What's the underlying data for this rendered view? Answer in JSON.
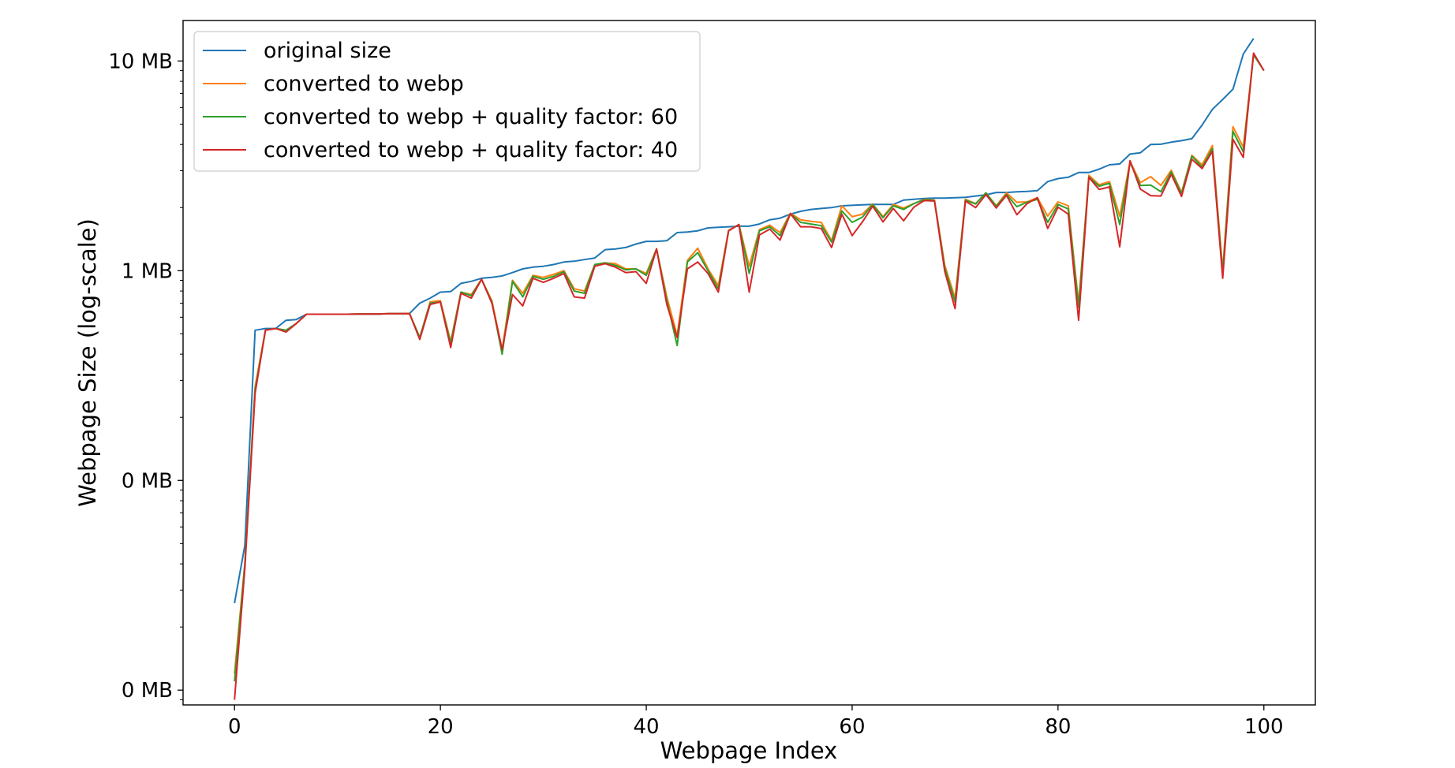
{
  "chart_data": {
    "type": "line",
    "xlabel": "Webpage Index",
    "ylabel": "Webpage Size (log-scale)",
    "yscale": "log",
    "xlim": [
      -5,
      105
    ],
    "ylim": [
      0.0085,
      15.6
    ],
    "x_ticks": [
      0,
      20,
      40,
      60,
      80,
      100
    ],
    "y_ticks": [
      {
        "value": 10,
        "label": "10 MB"
      },
      {
        "value": 1,
        "label": "1 MB"
      },
      {
        "value": 0.1,
        "label": "0 MB"
      },
      {
        "value": 0.01,
        "label": "0 MB"
      }
    ],
    "grid": false,
    "legend_position": "top-left",
    "series": [
      {
        "name": "original size",
        "color": "#1f77b4",
        "values": [
          0.026,
          0.049,
          0.52,
          0.53,
          0.53,
          0.58,
          0.585,
          0.62,
          0.62,
          0.62,
          0.62,
          0.62,
          0.622,
          0.622,
          0.622,
          0.624,
          0.624,
          0.625,
          0.7,
          0.74,
          0.79,
          0.795,
          0.87,
          0.89,
          0.92,
          0.93,
          0.945,
          0.98,
          1.02,
          1.04,
          1.05,
          1.07,
          1.1,
          1.11,
          1.13,
          1.15,
          1.26,
          1.27,
          1.29,
          1.34,
          1.38,
          1.38,
          1.39,
          1.52,
          1.53,
          1.55,
          1.6,
          1.61,
          1.62,
          1.63,
          1.63,
          1.67,
          1.75,
          1.78,
          1.86,
          1.92,
          1.96,
          1.98,
          2.0,
          2.04,
          2.05,
          2.06,
          2.07,
          2.07,
          2.07,
          2.17,
          2.19,
          2.21,
          2.22,
          2.22,
          2.23,
          2.24,
          2.27,
          2.3,
          2.36,
          2.36,
          2.38,
          2.39,
          2.41,
          2.66,
          2.75,
          2.79,
          2.94,
          2.94,
          3.05,
          3.2,
          3.23,
          3.6,
          3.65,
          4.0,
          4.01,
          4.1,
          4.17,
          4.26,
          4.95,
          5.88,
          6.56,
          7.34,
          10.8,
          12.8
        ]
      },
      {
        "name": "converted to webp",
        "color": "#ff7f0e",
        "values": [
          0.012,
          0.04,
          0.28,
          0.52,
          0.53,
          0.52,
          0.56,
          0.62,
          0.62,
          0.62,
          0.62,
          0.62,
          0.622,
          0.622,
          0.622,
          0.624,
          0.624,
          0.625,
          0.48,
          0.71,
          0.72,
          0.46,
          0.79,
          0.77,
          0.91,
          0.72,
          0.42,
          0.9,
          0.78,
          0.95,
          0.93,
          0.96,
          1.0,
          0.82,
          0.8,
          1.07,
          1.09,
          1.08,
          1.02,
          1.02,
          0.97,
          1.27,
          0.75,
          0.49,
          1.12,
          1.28,
          1.02,
          0.85,
          1.56,
          1.66,
          1.05,
          1.57,
          1.65,
          1.52,
          1.88,
          1.75,
          1.72,
          1.7,
          1.39,
          2.04,
          1.81,
          1.86,
          2.08,
          1.81,
          2.07,
          1.99,
          2.09,
          2.19,
          2.17,
          1.06,
          0.74,
          2.19,
          2.09,
          2.35,
          2.04,
          2.35,
          2.12,
          2.13,
          2.23,
          1.82,
          2.13,
          2.04,
          0.7,
          2.85,
          2.57,
          2.66,
          1.82,
          3.32,
          2.63,
          2.81,
          2.55,
          3.01,
          2.36,
          3.55,
          3.2,
          3.95,
          1.01,
          4.86,
          3.88,
          10.8,
          9.0
        ]
      },
      {
        "name": "converted to webp + quality factor: 60",
        "color": "#2ca02c",
        "values": [
          0.011,
          0.04,
          0.27,
          0.52,
          0.53,
          0.52,
          0.56,
          0.62,
          0.62,
          0.62,
          0.62,
          0.62,
          0.622,
          0.622,
          0.622,
          0.624,
          0.624,
          0.625,
          0.48,
          0.7,
          0.71,
          0.45,
          0.79,
          0.76,
          0.91,
          0.71,
          0.4,
          0.89,
          0.75,
          0.94,
          0.91,
          0.94,
          0.99,
          0.8,
          0.78,
          1.07,
          1.09,
          1.06,
          1.01,
          1.02,
          0.95,
          1.27,
          0.72,
          0.44,
          1.1,
          1.22,
          1.0,
          0.82,
          1.55,
          1.66,
          0.97,
          1.55,
          1.62,
          1.47,
          1.87,
          1.7,
          1.67,
          1.64,
          1.37,
          1.93,
          1.7,
          1.8,
          2.07,
          1.79,
          2.04,
          1.96,
          2.09,
          2.18,
          2.16,
          1.03,
          0.71,
          2.17,
          2.08,
          2.35,
          2.03,
          2.31,
          2.02,
          2.12,
          2.19,
          1.7,
          2.07,
          1.97,
          0.67,
          2.8,
          2.53,
          2.61,
          1.66,
          3.29,
          2.55,
          2.56,
          2.38,
          2.96,
          2.33,
          3.52,
          3.12,
          3.82,
          0.97,
          4.62,
          3.69,
          10.7,
          9.0
        ]
      },
      {
        "name": "converted to webp + quality factor: 40",
        "color": "#d62728",
        "values": [
          0.009,
          0.038,
          0.26,
          0.52,
          0.53,
          0.51,
          0.56,
          0.62,
          0.62,
          0.62,
          0.62,
          0.62,
          0.622,
          0.622,
          0.622,
          0.624,
          0.624,
          0.625,
          0.47,
          0.69,
          0.71,
          0.43,
          0.78,
          0.74,
          0.91,
          0.7,
          0.42,
          0.77,
          0.68,
          0.92,
          0.88,
          0.92,
          0.97,
          0.75,
          0.74,
          1.05,
          1.08,
          1.04,
          0.98,
          0.99,
          0.87,
          1.27,
          0.69,
          0.48,
          1.02,
          1.1,
          0.97,
          0.79,
          1.55,
          1.66,
          0.79,
          1.48,
          1.58,
          1.4,
          1.87,
          1.62,
          1.62,
          1.59,
          1.29,
          1.86,
          1.47,
          1.71,
          2.03,
          1.71,
          1.98,
          1.73,
          2.01,
          2.16,
          2.15,
          0.99,
          0.66,
          2.15,
          2.0,
          2.31,
          1.99,
          2.29,
          1.85,
          2.09,
          2.23,
          1.59,
          2.01,
          1.86,
          0.58,
          2.79,
          2.44,
          2.51,
          1.3,
          3.35,
          2.45,
          2.28,
          2.27,
          2.88,
          2.26,
          3.4,
          3.07,
          3.71,
          0.92,
          4.23,
          3.47,
          10.9,
          9.0
        ]
      }
    ]
  }
}
